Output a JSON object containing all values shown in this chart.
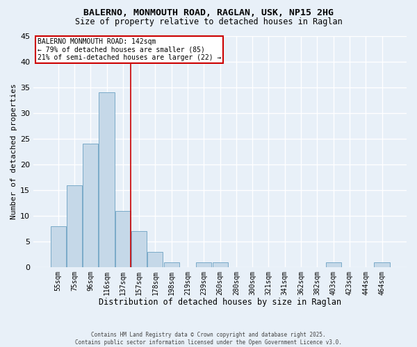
{
  "title_line1": "BALERNO, MONMOUTH ROAD, RAGLAN, USK, NP15 2HG",
  "title_line2": "Size of property relative to detached houses in Raglan",
  "xlabel": "Distribution of detached houses by size in Raglan",
  "ylabel": "Number of detached properties",
  "bar_labels": [
    "55sqm",
    "75sqm",
    "96sqm",
    "116sqm",
    "137sqm",
    "157sqm",
    "178sqm",
    "198sqm",
    "219sqm",
    "239sqm",
    "260sqm",
    "280sqm",
    "300sqm",
    "321sqm",
    "341sqm",
    "362sqm",
    "382sqm",
    "403sqm",
    "423sqm",
    "444sqm",
    "464sqm"
  ],
  "bar_heights": [
    8,
    16,
    24,
    34,
    11,
    7,
    3,
    1,
    0,
    1,
    1,
    0,
    0,
    0,
    0,
    0,
    0,
    1,
    0,
    0,
    1
  ],
  "bar_color": "#c5d8e8",
  "bar_edge_color": "#7aaac8",
  "red_line_index": 4,
  "annotation_title": "BALERNO MONMOUTH ROAD: 142sqm",
  "annotation_line2": "← 79% of detached houses are smaller (85)",
  "annotation_line3": "21% of semi-detached houses are larger (22) →",
  "annotation_box_color": "#ffffff",
  "annotation_box_edge": "#cc0000",
  "red_line_color": "#cc0000",
  "background_color": "#e8f0f8",
  "grid_color": "#ffffff",
  "ylim": [
    0,
    45
  ],
  "yticks": [
    0,
    5,
    10,
    15,
    20,
    25,
    30,
    35,
    40,
    45
  ],
  "footer_line1": "Contains HM Land Registry data © Crown copyright and database right 2025.",
  "footer_line2": "Contains public sector information licensed under the Open Government Licence v3.0."
}
